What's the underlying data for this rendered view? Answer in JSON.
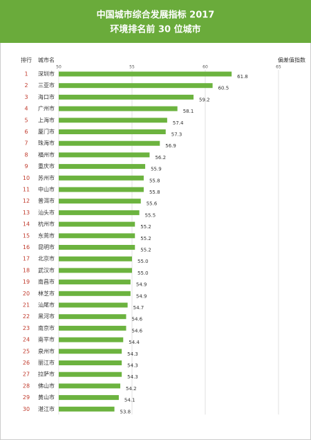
{
  "chart_data": {
    "type": "bar",
    "orientation": "horizontal",
    "title": "中国城市综合发展指标 2017",
    "subtitle": "环境排名前 30 位城市",
    "rank_header": "排行",
    "category_header": "城市名",
    "value_header": "偏差值指数",
    "ranks": [
      1,
      2,
      3,
      4,
      5,
      6,
      7,
      8,
      9,
      10,
      11,
      12,
      13,
      14,
      15,
      16,
      17,
      18,
      19,
      20,
      21,
      22,
      23,
      24,
      25,
      26,
      27,
      28,
      29,
      30
    ],
    "categories": [
      "深圳市",
      "三亚市",
      "海口市",
      "广州市",
      "上海市",
      "厦门市",
      "珠海市",
      "福州市",
      "重庆市",
      "苏州市",
      "中山市",
      "普洱市",
      "汕头市",
      "杭州市",
      "东莞市",
      "昆明市",
      "北京市",
      "武汉市",
      "南昌市",
      "林芝市",
      "汕尾市",
      "黑河市",
      "南京市",
      "南平市",
      "泉州市",
      "丽江市",
      "拉萨市",
      "佛山市",
      "黄山市",
      "湛江市"
    ],
    "values": [
      61.8,
      60.5,
      59.2,
      58.1,
      57.4,
      57.3,
      56.9,
      56.2,
      55.9,
      55.8,
      55.8,
      55.6,
      55.5,
      55.2,
      55.2,
      55.2,
      55.0,
      55.0,
      54.9,
      54.9,
      54.7,
      54.6,
      54.6,
      54.4,
      54.3,
      54.3,
      54.3,
      54.2,
      54.1,
      53.8
    ],
    "value_labels": [
      "61.8",
      "60.5",
      "59.2",
      "58.1",
      "57.4",
      "57.3",
      "56.9",
      "56.2",
      "55.9",
      "55.8",
      "55.8",
      "55.6",
      "55.5",
      "55.2",
      "55.2",
      "55.2",
      "55.0",
      "55.0",
      "54.9",
      "54.9",
      "54.7",
      "54.6",
      "54.6",
      "54.4",
      "54.3",
      "54.3",
      "54.3",
      "54.2",
      "54.1",
      "53.8"
    ],
    "color": "#6cb33f",
    "rank_color": "#c0392b",
    "xlim": [
      50,
      65
    ],
    "xticks": [
      50,
      55,
      60,
      65
    ],
    "grid": true
  }
}
